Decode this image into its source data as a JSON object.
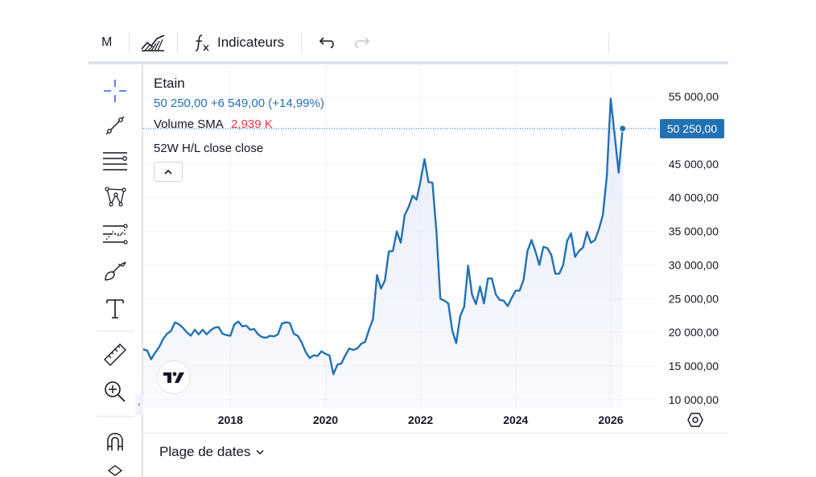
{
  "toolbar": {
    "interval": "M",
    "indicators_label": "Indicateurs"
  },
  "legend": {
    "symbol": "Etain",
    "price": "50 250,00",
    "change": "+6 549,00",
    "change_pct": "(+14,99%)",
    "volume_label": "Volume SMA",
    "volume_value": "2,939 K",
    "hl_label": "52W H/L close close"
  },
  "price_label": "50 250,00",
  "footer": {
    "date_range_label": "Plage de dates"
  },
  "colors": {
    "line": "#2271b3",
    "area": "#e8ecfb",
    "negative_text": "#f23645",
    "accent": "#2962ff"
  },
  "icons": [
    "chart-style-icon",
    "function-icon",
    "undo-icon",
    "redo-icon",
    "crosshair-icon",
    "trend-line-icon",
    "fib-icon",
    "pattern-icon",
    "prediction-icon",
    "brush-icon",
    "text-icon",
    "ruler-icon",
    "zoom-icon",
    "magnet-icon",
    "collapse-chevron-icon",
    "settings-icon"
  ],
  "chart_data": {
    "type": "area",
    "y_ticks": [
      "55 000,00",
      "50 000,00",
      "45 000,00",
      "40 000,00",
      "35 000,00",
      "30 000,00",
      "25 000,00",
      "20 000,00",
      "15 000,00",
      "10 000,00"
    ],
    "x_ticks": [
      "2018",
      "2020",
      "2022",
      "2024",
      "2026"
    ],
    "ylim": [
      10000,
      56000
    ],
    "xlim": [
      "2016-03",
      "2027-01"
    ],
    "last_value": 50250,
    "series": [
      {
        "values": [
          [
            "2016-03",
            17500
          ],
          [
            "2016-04",
            17300
          ],
          [
            "2016-05",
            16000
          ],
          [
            "2016-06",
            17000
          ],
          [
            "2016-07",
            17800
          ],
          [
            "2016-08",
            19000
          ],
          [
            "2016-09",
            19800
          ],
          [
            "2016-10",
            20200
          ],
          [
            "2016-11",
            21500
          ],
          [
            "2016-12",
            21200
          ],
          [
            "2017-01",
            20700
          ],
          [
            "2017-02",
            20000
          ],
          [
            "2017-03",
            19500
          ],
          [
            "2017-04",
            20400
          ],
          [
            "2017-05",
            19700
          ],
          [
            "2017-06",
            20400
          ],
          [
            "2017-07",
            19700
          ],
          [
            "2017-08",
            20300
          ],
          [
            "2017-09",
            20700
          ],
          [
            "2017-10",
            20800
          ],
          [
            "2017-11",
            19800
          ],
          [
            "2017-12",
            19600
          ],
          [
            "2018-01",
            19500
          ],
          [
            "2018-02",
            21200
          ],
          [
            "2018-03",
            21600
          ],
          [
            "2018-04",
            20900
          ],
          [
            "2018-05",
            21000
          ],
          [
            "2018-06",
            20400
          ],
          [
            "2018-07",
            20500
          ],
          [
            "2018-08",
            19700
          ],
          [
            "2018-09",
            19300
          ],
          [
            "2018-10",
            19200
          ],
          [
            "2018-11",
            19500
          ],
          [
            "2018-12",
            19400
          ],
          [
            "2019-01",
            19700
          ],
          [
            "2019-02",
            21300
          ],
          [
            "2019-03",
            21500
          ],
          [
            "2019-04",
            21400
          ],
          [
            "2019-05",
            19800
          ],
          [
            "2019-06",
            19500
          ],
          [
            "2019-07",
            18500
          ],
          [
            "2019-08",
            17100
          ],
          [
            "2019-09",
            16200
          ],
          [
            "2019-10",
            16600
          ],
          [
            "2019-11",
            16500
          ],
          [
            "2019-12",
            17200
          ],
          [
            "2020-01",
            16800
          ],
          [
            "2020-02",
            16600
          ],
          [
            "2020-03",
            13800
          ],
          [
            "2020-04",
            15200
          ],
          [
            "2020-05",
            15400
          ],
          [
            "2020-06",
            16600
          ],
          [
            "2020-07",
            17600
          ],
          [
            "2020-08",
            17400
          ],
          [
            "2020-09",
            17600
          ],
          [
            "2020-10",
            18300
          ],
          [
            "2020-11",
            18600
          ],
          [
            "2020-12",
            20400
          ],
          [
            "2021-01",
            22000
          ],
          [
            "2021-02",
            28500
          ],
          [
            "2021-03",
            26500
          ],
          [
            "2021-04",
            27700
          ],
          [
            "2021-05",
            32000
          ],
          [
            "2021-06",
            32100
          ],
          [
            "2021-07",
            35000
          ],
          [
            "2021-08",
            33300
          ],
          [
            "2021-09",
            37400
          ],
          [
            "2021-10",
            38600
          ],
          [
            "2021-11",
            40300
          ],
          [
            "2021-12",
            39700
          ],
          [
            "2022-01",
            42500
          ],
          [
            "2022-02",
            45700
          ],
          [
            "2022-03",
            42300
          ],
          [
            "2022-04",
            42200
          ],
          [
            "2022-05",
            35000
          ],
          [
            "2022-06",
            25000
          ],
          [
            "2022-07",
            24700
          ],
          [
            "2022-08",
            24300
          ],
          [
            "2022-09",
            20300
          ],
          [
            "2022-10",
            18400
          ],
          [
            "2022-11",
            22400
          ],
          [
            "2022-12",
            23800
          ],
          [
            "2023-01",
            29900
          ],
          [
            "2023-02",
            25600
          ],
          [
            "2023-03",
            24200
          ],
          [
            "2023-04",
            26800
          ],
          [
            "2023-05",
            24300
          ],
          [
            "2023-06",
            28000
          ],
          [
            "2023-07",
            28000
          ],
          [
            "2023-08",
            25600
          ],
          [
            "2023-09",
            24800
          ],
          [
            "2023-10",
            24700
          ],
          [
            "2023-11",
            23900
          ],
          [
            "2023-12",
            25100
          ],
          [
            "2024-01",
            26200
          ],
          [
            "2024-02",
            26200
          ],
          [
            "2024-03",
            27800
          ],
          [
            "2024-04",
            32100
          ],
          [
            "2024-05",
            33700
          ],
          [
            "2024-06",
            32000
          ],
          [
            "2024-07",
            30000
          ],
          [
            "2024-08",
            32700
          ],
          [
            "2024-09",
            32500
          ],
          [
            "2024-10",
            31500
          ],
          [
            "2024-11",
            28700
          ],
          [
            "2024-12",
            28700
          ],
          [
            "2025-01",
            30000
          ],
          [
            "2025-02",
            33600
          ],
          [
            "2025-03",
            34700
          ],
          [
            "2025-04",
            31200
          ],
          [
            "2025-05",
            32100
          ],
          [
            "2025-06",
            32600
          ],
          [
            "2025-07",
            34900
          ],
          [
            "2025-08",
            33300
          ],
          [
            "2025-09",
            33700
          ],
          [
            "2025-10",
            35300
          ],
          [
            "2025-11",
            37400
          ],
          [
            "2025-12",
            43100
          ],
          [
            "2026-01",
            54700
          ],
          [
            "2026-02",
            49300
          ],
          [
            "2026-03",
            43700
          ],
          [
            "2026-04",
            50250
          ]
        ]
      }
    ]
  }
}
